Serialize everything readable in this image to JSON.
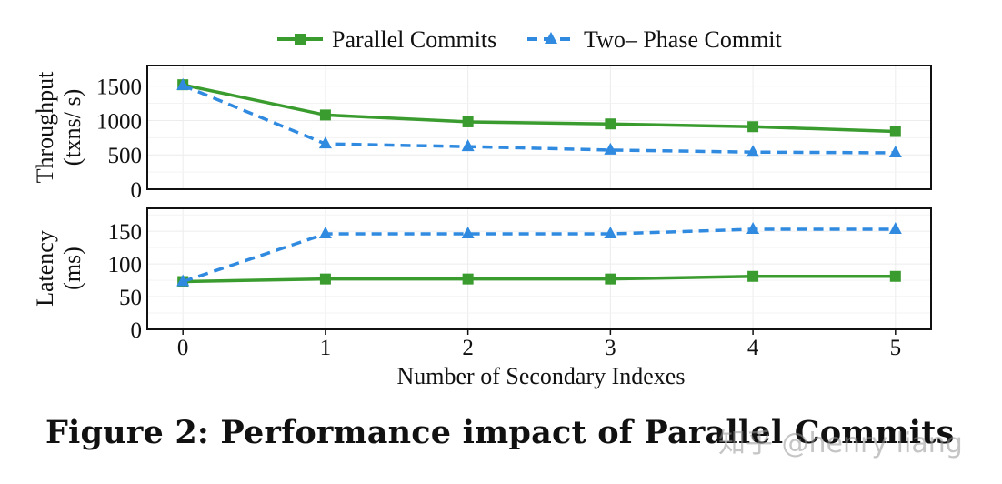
{
  "chart_data": {
    "type": "line",
    "xlabel": "Number of Secondary Indexes",
    "x": [
      0,
      1,
      2,
      3,
      4,
      5
    ],
    "xticks": [
      "0",
      "1",
      "2",
      "3",
      "4",
      "5"
    ],
    "legend": [
      {
        "name": "Parallel Commits",
        "color": "#3a9c2f",
        "marker": "square",
        "style": "solid"
      },
      {
        "name": "Two– Phase Commit",
        "color": "#2f8ae0",
        "marker": "triangle",
        "style": "dashed"
      }
    ],
    "panels": [
      {
        "id": "throughput",
        "ylabel_line1": "Throughput",
        "ylabel_line2": "(txns/ s)",
        "ylim": [
          0,
          1800
        ],
        "yticks": [
          0,
          500,
          1000,
          1500
        ],
        "series": [
          {
            "name": "Parallel Commits",
            "values": [
              1520,
              1080,
              980,
              950,
              910,
              840
            ]
          },
          {
            "name": "Two– Phase Commit",
            "values": [
              1510,
              660,
              620,
              570,
              540,
              530
            ]
          }
        ]
      },
      {
        "id": "latency",
        "ylabel_line1": "Latency",
        "ylabel_line2": "(ms)",
        "ylim": [
          0,
          185
        ],
        "yticks": [
          0,
          50,
          100,
          150
        ],
        "series": [
          {
            "name": "Parallel Commits",
            "values": [
              73,
              77,
              77,
              77,
              81,
              81
            ]
          },
          {
            "name": "Two– Phase Commit",
            "values": [
              73,
              146,
              146,
              146,
              153,
              153
            ]
          }
        ]
      }
    ]
  },
  "caption": "Figure 2: Performance impact of Parallel Commits",
  "watermark": "知乎 @henry liang"
}
